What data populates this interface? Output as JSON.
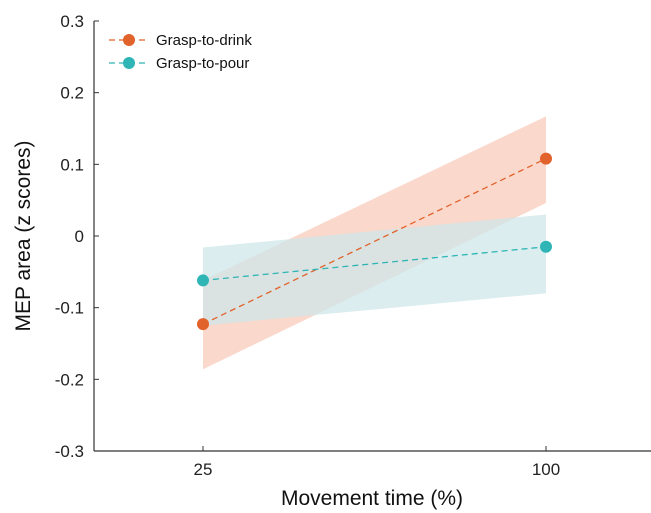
{
  "chart_data": {
    "type": "line",
    "title": "",
    "xlabel": "Movement time (%)",
    "ylabel": "MEP area (z scores)",
    "x": [
      25,
      100
    ],
    "x_tick_labels": [
      "25",
      "100"
    ],
    "ylim": [
      -0.3,
      0.3
    ],
    "y_ticks": [
      -0.3,
      -0.2,
      -0.1,
      0,
      0.1,
      0.2,
      0.3
    ],
    "y_tick_labels": [
      "-0.3",
      "-0.2",
      "-0.1",
      "0",
      "0.1",
      "0.2",
      "0.3"
    ],
    "grid": false,
    "legend_position": "top-left",
    "series": [
      {
        "name": "Grasp-to-drink",
        "values": [
          -0.123,
          0.108
        ],
        "ci_lower": [
          -0.186,
          0.046
        ],
        "ci_upper": [
          -0.062,
          0.167
        ],
        "color": "#e2622b",
        "band_color": "#f9d1c3"
      },
      {
        "name": "Grasp-to-pour",
        "values": [
          -0.062,
          -0.015
        ],
        "ci_lower": [
          -0.125,
          -0.08
        ],
        "ci_upper": [
          -0.016,
          0.03
        ],
        "color": "#2fb5b5",
        "band_color": "#cfe7e8"
      }
    ]
  }
}
